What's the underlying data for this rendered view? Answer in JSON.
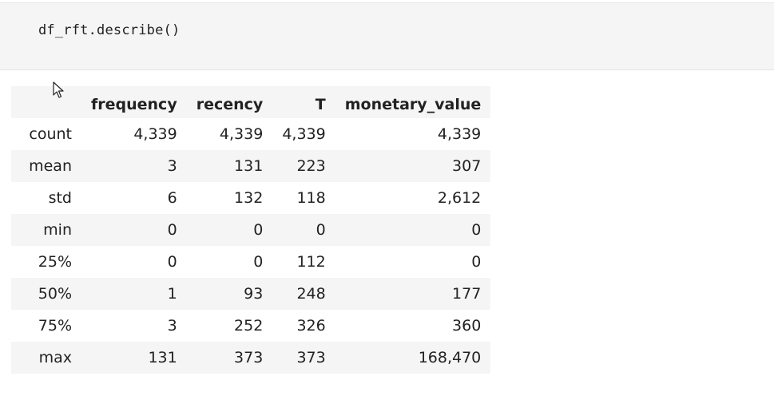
{
  "code_cell": {
    "source": "df_rft.describe()"
  },
  "table": {
    "columns": [
      "frequency",
      "recency",
      "T",
      "monetary_value"
    ],
    "rows": [
      {
        "index": "count",
        "frequency": "4,339",
        "recency": "4,339",
        "T": "4,339",
        "monetary_value": "4,339"
      },
      {
        "index": "mean",
        "frequency": "3",
        "recency": "131",
        "T": "223",
        "monetary_value": "307"
      },
      {
        "index": "std",
        "frequency": "6",
        "recency": "132",
        "T": "118",
        "monetary_value": "2,612"
      },
      {
        "index": "min",
        "frequency": "0",
        "recency": "0",
        "T": "0",
        "monetary_value": "0"
      },
      {
        "index": "25%",
        "frequency": "0",
        "recency": "0",
        "T": "112",
        "monetary_value": "0"
      },
      {
        "index": "50%",
        "frequency": "1",
        "recency": "93",
        "T": "248",
        "monetary_value": "177"
      },
      {
        "index": "75%",
        "frequency": "3",
        "recency": "252",
        "T": "326",
        "monetary_value": "360"
      },
      {
        "index": "max",
        "frequency": "131",
        "recency": "373",
        "T": "373",
        "monetary_value": "168,470"
      }
    ]
  },
  "cursor": {
    "icon": "mouse-pointer-icon"
  }
}
